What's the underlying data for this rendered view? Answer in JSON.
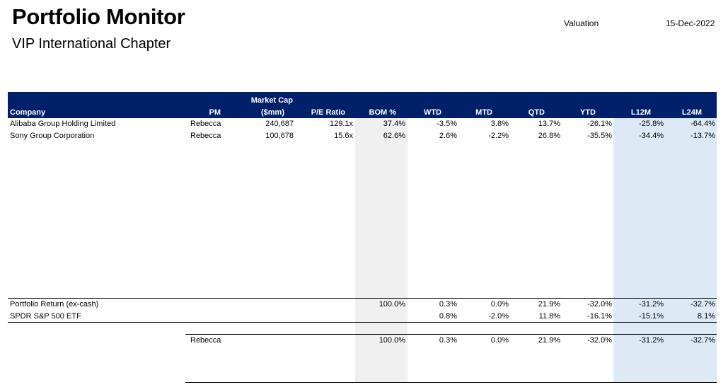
{
  "header": {
    "title": "Portfolio Monitor",
    "subtitle": "VIP International Chapter",
    "valuation_label": "Valuation",
    "valuation_date": "15-Dec-2022"
  },
  "colors": {
    "header_bar": "#00206a",
    "bom_band": "#f0f0f0",
    "return_band": "#dde9f5"
  },
  "columns": {
    "company": "Company",
    "pm": "PM",
    "mktcap_1": "Market Cap",
    "mktcap_2": "($mm)",
    "pe": "P/E Ratio",
    "bom": "BOM %",
    "wtd": "WTD",
    "mtd": "MTD",
    "qtd": "QTD",
    "ytd": "YTD",
    "l12m": "L12M",
    "l24m": "L24M"
  },
  "holdings": [
    {
      "company": "Alibaba Group Holding Limited",
      "pm": "Rebecca",
      "mktcap": "240,687",
      "pe": "129.1x",
      "bom": "37.4%",
      "wtd": "-3.5%",
      "mtd": "3.8%",
      "qtd": "13.7%",
      "ytd": "-26.1%",
      "l12m": "-25.8%",
      "l24m": "-64.4%"
    },
    {
      "company": "Sony Group Corporation",
      "pm": "Rebecca",
      "mktcap": "100,678",
      "pe": "15.6x",
      "bom": "62.6%",
      "wtd": "2.6%",
      "mtd": "-2.2%",
      "qtd": "26.8%",
      "ytd": "-35.5%",
      "l12m": "-34.4%",
      "l24m": "-13.7%"
    }
  ],
  "summary": [
    {
      "label": "Portfolio Return (ex-cash)",
      "bom": "100.0%",
      "wtd": "0.3%",
      "mtd": "0.0%",
      "qtd": "21.9%",
      "ytd": "-32.0%",
      "l12m": "-31.2%",
      "l24m": "-32.7%"
    },
    {
      "label": "SPDR S&P 500 ETF",
      "bom": "",
      "wtd": "0.8%",
      "mtd": "-2.0%",
      "qtd": "11.8%",
      "ytd": "-16.1%",
      "l12m": "-15.1%",
      "l24m": "8.1%"
    }
  ],
  "pm_summary": [
    {
      "pm": "Rebecca",
      "bom": "100.0%",
      "wtd": "0.3%",
      "mtd": "0.0%",
      "qtd": "21.9%",
      "ytd": "-32.0%",
      "l12m": "-31.2%",
      "l24m": "-32.7%"
    }
  ]
}
